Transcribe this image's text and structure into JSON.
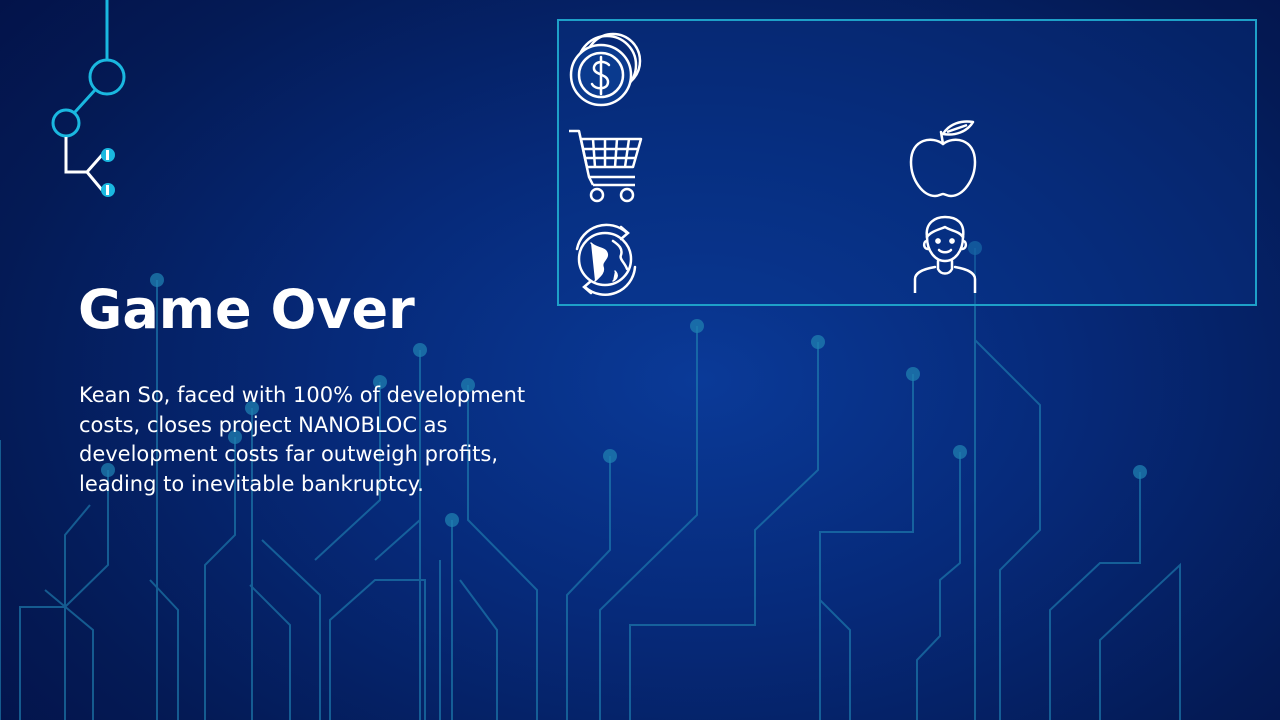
{
  "slide": {
    "title": "Game Over",
    "description": "Kean So, faced with 100% of development costs, closes project NANOBLOC as development costs far outweigh profits, leading to inevitable bankruptcy."
  },
  "icons": {
    "logo": "network-logo-icon",
    "money": "dollar-coins-icon",
    "cart": "shopping-cart-icon",
    "globe": "globe-cycle-icon",
    "apple": "apple-icon",
    "person": "person-icon"
  },
  "colors": {
    "background": "#062a7a",
    "panel_border": "#1ea0c8",
    "accent_cyan": "#1ab8e0",
    "circuit": "#1f7fa8",
    "text": "#ffffff"
  }
}
